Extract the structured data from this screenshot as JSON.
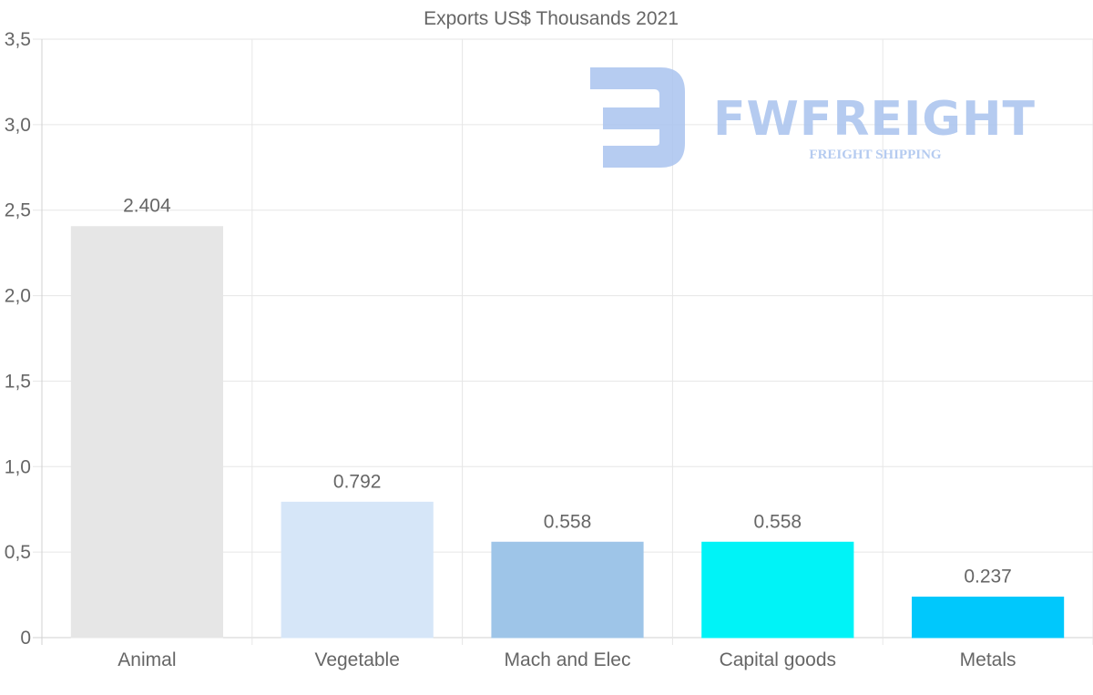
{
  "chart_data": {
    "type": "bar",
    "title": "Exports US$ Thousands 2021",
    "categories": [
      "Animal",
      "Vegetable",
      "Mach and Elec",
      "Capital goods",
      "Metals"
    ],
    "values": [
      2.404,
      0.792,
      0.558,
      0.558,
      0.237
    ],
    "value_labels": [
      "2.404",
      "0.792",
      "0.558",
      "0.558",
      "0.237"
    ],
    "colors": [
      "#e6e6e6",
      "#d6e6f8",
      "#9ec5e8",
      "#00f3f7",
      "#00c8fc"
    ],
    "ylim": [
      0,
      3.5
    ],
    "yticks": [
      0,
      0.5,
      1.0,
      1.5,
      2.0,
      2.5,
      3.0,
      3.5
    ],
    "ytick_labels": [
      "0",
      "0,5",
      "1,0",
      "1,5",
      "2,0",
      "2,5",
      "3,0",
      "3,5"
    ],
    "xlabel": "",
    "ylabel": "",
    "grid": true,
    "legend": "none"
  },
  "watermark": {
    "brand": "FWFREIGHT",
    "tagline": "FREIGHT SHIPPING",
    "icon": "fw-logo-icon",
    "color": "#a9c3ee"
  }
}
